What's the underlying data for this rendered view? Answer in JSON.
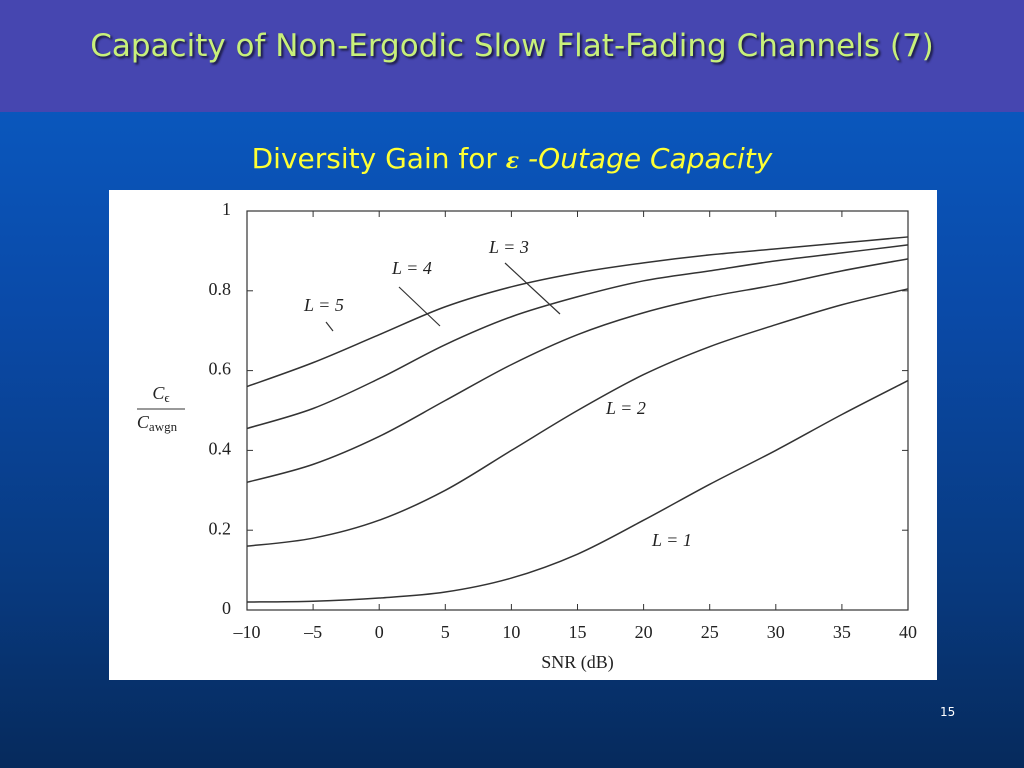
{
  "slide": {
    "title": "Capacity of Non-Ergodic Slow Flat-Fading Channels (7)",
    "subtitle": {
      "lead": "Diversity Gain for ",
      "symbol": "ε",
      "tail": " -Outage Capacity"
    },
    "page_number": "15"
  },
  "chart_data": {
    "type": "line",
    "x_label": "SNR (dB)",
    "y_label": {
      "numerator": "C",
      "numerator_sub": "ϵ",
      "denominator": "C",
      "denominator_sub": "awgn"
    },
    "x": [
      -10,
      -5,
      0,
      5,
      10,
      15,
      20,
      25,
      30,
      35,
      40
    ],
    "series": [
      {
        "name": "L = 1",
        "color": "#333333",
        "values": [
          0.02,
          0.022,
          0.03,
          0.045,
          0.08,
          0.14,
          0.225,
          0.315,
          0.4,
          0.49,
          0.575
        ]
      },
      {
        "name": "L = 2",
        "color": "#333333",
        "values": [
          0.16,
          0.18,
          0.225,
          0.3,
          0.4,
          0.5,
          0.59,
          0.66,
          0.715,
          0.765,
          0.805
        ]
      },
      {
        "name": "L = 3",
        "color": "#333333",
        "values": [
          0.32,
          0.365,
          0.435,
          0.525,
          0.615,
          0.69,
          0.745,
          0.785,
          0.815,
          0.85,
          0.88
        ]
      },
      {
        "name": "L = 4",
        "color": "#333333",
        "values": [
          0.455,
          0.505,
          0.58,
          0.665,
          0.735,
          0.785,
          0.825,
          0.85,
          0.875,
          0.895,
          0.915
        ]
      },
      {
        "name": "L = 5",
        "color": "#333333",
        "values": [
          0.56,
          0.62,
          0.69,
          0.76,
          0.81,
          0.845,
          0.87,
          0.89,
          0.905,
          0.92,
          0.935
        ]
      }
    ],
    "xlim": [
      -10,
      40
    ],
    "xticks": [
      {
        "value": -10,
        "label": "–10"
      },
      {
        "value": -5,
        "label": "–5"
      },
      0,
      5,
      10,
      15,
      20,
      25,
      30,
      35,
      40
    ],
    "ylim": [
      0,
      1
    ],
    "yticks": [
      0,
      0.2,
      0.4,
      0.6,
      0.8,
      1
    ],
    "grid": false
  }
}
